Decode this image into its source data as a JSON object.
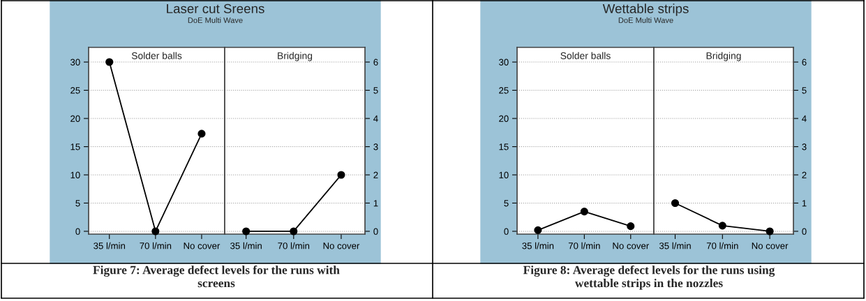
{
  "chart_data": [
    {
      "type": "line",
      "title": "Solder balls",
      "categories": [
        "35 l/min",
        "70 l/min",
        "No cover"
      ],
      "series": [
        {
          "color": "#000000",
          "values": [
            30,
            0,
            17.3
          ]
        }
      ],
      "ylim": [
        -0.5,
        32.6
      ],
      "yticks": [
        0,
        5,
        10,
        15,
        20,
        25,
        30
      ],
      "grid": "y",
      "marker": "circle",
      "line_style": "solid",
      "annotations": [
        "Laser cut Sreens",
        "DoE Multi Wave",
        "Figure 7: Average defect levels for the runs with\nscreens"
      ]
    },
    {
      "type": "line",
      "title": "Bridging",
      "categories": [
        "35 l/min",
        "70 l/min",
        "No cover"
      ],
      "series": [
        {
          "color": "#000000",
          "axis": "y2",
          "values": [
            0,
            0,
            2
          ]
        }
      ],
      "y2lim": [
        -0.1,
        6.52
      ],
      "y2ticks": [
        0,
        1,
        2,
        3,
        4,
        5,
        6
      ],
      "grid": "y",
      "marker": "circle",
      "line_style": "solid"
    },
    {
      "type": "line",
      "title": "Solder balls",
      "categories": [
        "35 l/min",
        "70 l/min",
        "No cover"
      ],
      "series": [
        {
          "color": "#000000",
          "values": [
            0.2,
            3.5,
            0.9
          ]
        }
      ],
      "ylim": [
        -0.5,
        32.6
      ],
      "yticks": [
        0,
        5,
        10,
        15,
        20,
        25,
        30
      ],
      "grid": "y",
      "marker": "circle",
      "line_style": "solid",
      "annotations": [
        "Wettable strips",
        "DoE Multi Wave",
        "Figure 8: Average defect levels for the runs using\nwettable strips in the nozzles"
      ]
    },
    {
      "type": "line",
      "title": "Bridging",
      "categories": [
        "35 l/min",
        "70 l/min",
        "No cover"
      ],
      "series": [
        {
          "color": "#000000",
          "axis": "y2",
          "values": [
            1.0,
            0.2,
            0
          ]
        }
      ],
      "y2lim": [
        -0.1,
        6.52
      ],
      "y2ticks": [
        0,
        1,
        2,
        3,
        4,
        5,
        6
      ],
      "grid": "y",
      "marker": "circle",
      "line_style": "solid"
    }
  ]
}
